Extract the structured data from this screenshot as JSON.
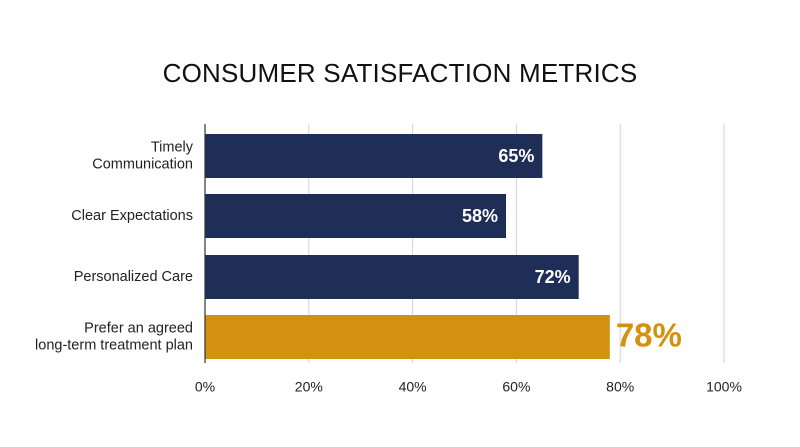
{
  "chart_data": {
    "type": "bar",
    "orientation": "horizontal",
    "title": "CONSUMER SATISFACTION METRICS",
    "categories": [
      "Timely\nCommunication",
      "Clear Expectations",
      "Personalized Care",
      "Prefer an agreed\nlong-term treatment plan"
    ],
    "values": [
      65,
      58,
      72,
      78
    ],
    "value_labels": [
      "65%",
      "58%",
      "72%",
      "78%"
    ],
    "bar_colors": [
      "#1f2e57",
      "#1f2e57",
      "#1f2e57",
      "#d4900f"
    ],
    "highlight_index": 3,
    "xlim": [
      0,
      100
    ],
    "xticks": [
      0,
      20,
      40,
      60,
      80,
      100
    ],
    "xtick_labels": [
      "0%",
      "20%",
      "40%",
      "60%",
      "80%",
      "100%"
    ],
    "xlabel": "",
    "ylabel": "",
    "grid": "vertical",
    "legend": "none"
  }
}
